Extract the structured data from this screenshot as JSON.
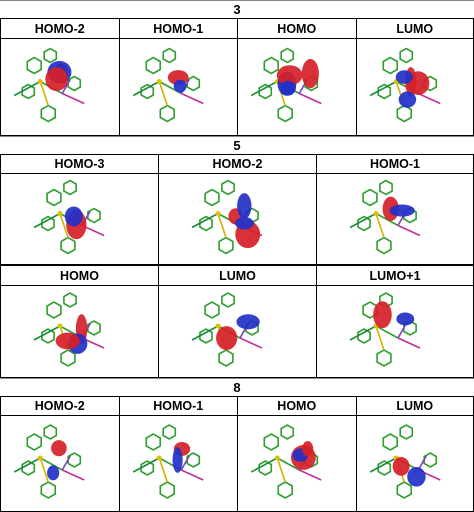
{
  "sections": [
    {
      "title": "3",
      "rows": [
        {
          "labels": [
            "HOMO-2",
            "HOMO-1",
            "HOMO",
            "LUMO"
          ]
        }
      ]
    },
    {
      "title": "5",
      "rows": [
        {
          "labels": [
            "HOMO-3",
            "HOMO-2",
            "HOMO-1"
          ]
        },
        {
          "labels": [
            "HOMO",
            "LUMO",
            "LUMO+1"
          ]
        }
      ]
    },
    {
      "title": "8",
      "rows": [
        {
          "labels": [
            "HOMO-2",
            "HOMO-1",
            "HOMO",
            "LUMO"
          ]
        }
      ]
    }
  ]
}
